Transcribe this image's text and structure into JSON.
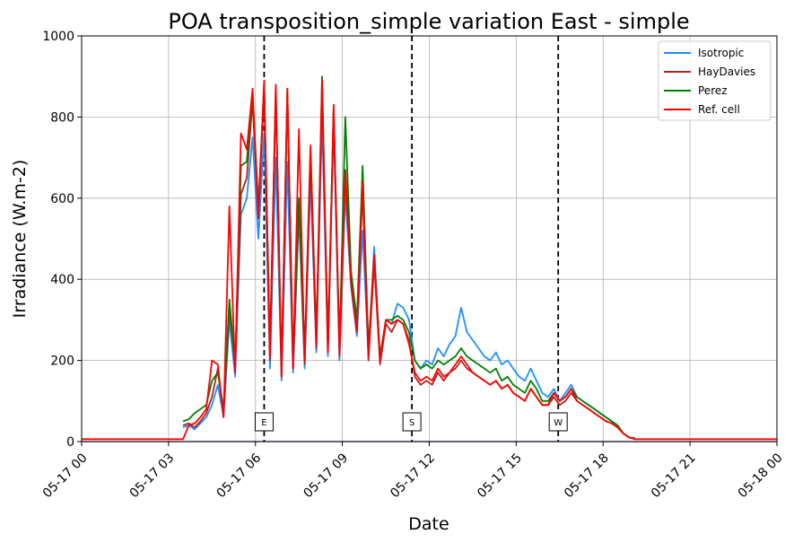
{
  "chart_data": {
    "type": "line",
    "title": "POA transposition_simple variation East - simple",
    "xlabel": "Date",
    "ylabel": "Irradiance (W.m-2)",
    "xlim": [
      0,
      24
    ],
    "ylim": [
      0,
      1000
    ],
    "grid": true,
    "legend_position": "top-right",
    "x_ticks": [
      {
        "value": 0,
        "label": "05-17 00"
      },
      {
        "value": 3,
        "label": "05-17 03"
      },
      {
        "value": 6,
        "label": "05-17 06"
      },
      {
        "value": 9,
        "label": "05-17 09"
      },
      {
        "value": 12,
        "label": "05-17 12"
      },
      {
        "value": 15,
        "label": "05-17 15"
      },
      {
        "value": 18,
        "label": "05-17 18"
      },
      {
        "value": 21,
        "label": "05-17 21"
      },
      {
        "value": 24,
        "label": "05-18 00"
      }
    ],
    "y_ticks": [
      0,
      200,
      400,
      600,
      800,
      1000
    ],
    "markers": [
      {
        "label": "E",
        "x": 6.3
      },
      {
        "label": "S",
        "x": 11.4
      },
      {
        "label": "W",
        "x": 16.45
      }
    ],
    "series": [
      {
        "name": "Isotropic",
        "color": "#1e90ff",
        "x": [
          3.5,
          3.7,
          3.9,
          4.1,
          4.3,
          4.5,
          4.7,
          4.9,
          5.1,
          5.3,
          5.5,
          5.7,
          5.9,
          6.1,
          6.3,
          6.5,
          6.7,
          6.9,
          7.1,
          7.3,
          7.5,
          7.7,
          7.9,
          8.1,
          8.3,
          8.5,
          8.7,
          8.9,
          9.1,
          9.3,
          9.5,
          9.7,
          9.9,
          10.1,
          10.3,
          10.5,
          10.7,
          10.9,
          11.1,
          11.3,
          11.5,
          11.7,
          11.9,
          12.1,
          12.3,
          12.5,
          12.7,
          12.9,
          13.1,
          13.3,
          13.5,
          13.7,
          13.9,
          14.1,
          14.3,
          14.5,
          14.7,
          14.9,
          15.1,
          15.3,
          15.5,
          15.7,
          15.9,
          16.1,
          16.3,
          16.5,
          16.7,
          16.9,
          17.1,
          17.3,
          17.5,
          17.7,
          17.9,
          18.1,
          18.3,
          18.5,
          18.7,
          18.9,
          19.1
        ],
        "values": [
          35,
          40,
          30,
          45,
          60,
          90,
          140,
          60,
          300,
          160,
          560,
          600,
          750,
          500,
          760,
          180,
          700,
          150,
          690,
          170,
          560,
          180,
          650,
          220,
          800,
          210,
          780,
          200,
          610,
          380,
          260,
          520,
          210,
          480,
          200,
          300,
          290,
          340,
          330,
          300,
          200,
          180,
          200,
          190,
          230,
          210,
          240,
          260,
          330,
          270,
          250,
          230,
          210,
          200,
          220,
          190,
          200,
          180,
          160,
          150,
          180,
          150,
          120,
          110,
          130,
          100,
          120,
          140,
          110,
          100,
          90,
          80,
          70,
          60,
          50,
          40,
          20,
          10,
          8
        ]
      },
      {
        "name": "HayDavies",
        "color": "#b22222",
        "x": [
          3.5,
          3.7,
          3.9,
          4.1,
          4.3,
          4.5,
          4.7,
          4.9,
          5.1,
          5.3,
          5.5,
          5.7,
          5.9,
          6.1,
          6.3,
          6.5,
          6.7,
          6.9,
          7.1,
          7.3,
          7.5,
          7.7,
          7.9,
          8.1,
          8.3,
          8.5,
          8.7,
          8.9,
          9.1,
          9.3,
          9.5,
          9.7,
          9.9,
          10.1,
          10.3,
          10.5,
          10.7,
          10.9,
          11.1,
          11.3,
          11.5,
          11.7,
          11.9,
          12.1,
          12.3,
          12.5,
          12.7,
          12.9,
          13.1,
          13.3,
          13.5,
          13.7,
          13.9,
          14.1,
          14.3,
          14.5,
          14.7,
          14.9,
          15.1,
          15.3,
          15.5,
          15.7,
          15.9,
          16.1,
          16.3,
          16.5,
          16.7,
          16.9,
          17.1,
          17.3,
          17.5,
          17.7,
          17.9,
          18.1,
          18.3,
          18.5,
          18.7,
          18.9,
          19.1
        ],
        "values": [
          40,
          45,
          35,
          50,
          70,
          110,
          180,
          70,
          330,
          180,
          610,
          650,
          840,
          550,
          870,
          200,
          860,
          160,
          860,
          180,
          590,
          190,
          700,
          230,
          870,
          220,
          820,
          210,
          670,
          410,
          280,
          620,
          200,
          440,
          190,
          290,
          270,
          300,
          290,
          250,
          160,
          140,
          150,
          140,
          170,
          150,
          170,
          180,
          200,
          180,
          170,
          160,
          150,
          140,
          150,
          130,
          140,
          120,
          110,
          100,
          130,
          110,
          90,
          90,
          110,
          90,
          100,
          120,
          100,
          90,
          80,
          70,
          60,
          50,
          45,
          35,
          20,
          10,
          8
        ]
      },
      {
        "name": "Perez",
        "color": "#008000",
        "x": [
          3.5,
          3.7,
          3.9,
          4.1,
          4.3,
          4.5,
          4.7,
          4.9,
          5.1,
          5.3,
          5.5,
          5.7,
          5.9,
          6.1,
          6.3,
          6.5,
          6.7,
          6.9,
          7.1,
          7.3,
          7.5,
          7.7,
          7.9,
          8.1,
          8.3,
          8.5,
          8.7,
          8.9,
          9.1,
          9.3,
          9.5,
          9.7,
          9.9,
          10.1,
          10.3,
          10.5,
          10.7,
          10.9,
          11.1,
          11.3,
          11.5,
          11.7,
          11.9,
          12.1,
          12.3,
          12.5,
          12.7,
          12.9,
          13.1,
          13.3,
          13.5,
          13.7,
          13.9,
          14.1,
          14.3,
          14.5,
          14.7,
          14.9,
          15.1,
          15.3,
          15.5,
          15.7,
          15.9,
          16.1,
          16.3,
          16.5,
          16.7,
          16.9,
          17.1,
          17.3,
          17.5,
          17.7,
          17.9,
          18.1,
          18.3,
          18.5,
          18.7,
          18.9,
          19.1
        ],
        "values": [
          50,
          55,
          70,
          80,
          90,
          150,
          170,
          80,
          350,
          190,
          680,
          690,
          860,
          580,
          880,
          230,
          870,
          180,
          870,
          200,
          600,
          210,
          720,
          260,
          900,
          240,
          820,
          230,
          800,
          420,
          300,
          680,
          230,
          460,
          210,
          300,
          300,
          310,
          300,
          270,
          200,
          180,
          190,
          180,
          200,
          190,
          200,
          210,
          230,
          210,
          200,
          190,
          180,
          170,
          180,
          150,
          160,
          140,
          130,
          120,
          150,
          130,
          100,
          100,
          120,
          100,
          110,
          130,
          110,
          100,
          90,
          80,
          70,
          60,
          50,
          40,
          20,
          10,
          8
        ]
      },
      {
        "name": "Ref. cell",
        "color": "#ff0000",
        "x": [
          0,
          3.5,
          3.7,
          3.9,
          4.1,
          4.3,
          4.5,
          4.7,
          4.9,
          5.1,
          5.3,
          5.5,
          5.7,
          5.9,
          6.1,
          6.3,
          6.5,
          6.7,
          6.9,
          7.1,
          7.3,
          7.5,
          7.7,
          7.9,
          8.1,
          8.3,
          8.5,
          8.7,
          8.9,
          9.1,
          9.3,
          9.5,
          9.7,
          9.9,
          10.1,
          10.3,
          10.5,
          10.7,
          10.9,
          11.1,
          11.3,
          11.5,
          11.7,
          11.9,
          12.1,
          12.3,
          12.5,
          12.7,
          12.9,
          13.1,
          13.3,
          13.5,
          13.7,
          13.9,
          14.1,
          14.3,
          14.5,
          14.7,
          14.9,
          15.1,
          15.3,
          15.5,
          15.7,
          15.9,
          16.1,
          16.3,
          16.5,
          16.7,
          16.9,
          17.1,
          17.3,
          17.5,
          17.7,
          17.9,
          18.1,
          18.3,
          18.5,
          18.7,
          18.9,
          19.1,
          24
        ],
        "values": [
          6,
          6,
          40,
          45,
          60,
          80,
          200,
          190,
          60,
          580,
          170,
          760,
          720,
          870,
          560,
          890,
          210,
          880,
          160,
          870,
          180,
          770,
          200,
          730,
          240,
          890,
          220,
          830,
          220,
          660,
          390,
          270,
          640,
          210,
          460,
          200,
          300,
          290,
          300,
          290,
          240,
          170,
          150,
          160,
          150,
          180,
          160,
          170,
          190,
          210,
          190,
          170,
          160,
          150,
          140,
          150,
          130,
          140,
          120,
          110,
          100,
          130,
          110,
          90,
          90,
          120,
          100,
          110,
          130,
          100,
          90,
          80,
          70,
          60,
          50,
          45,
          35,
          20,
          10,
          6,
          6
        ]
      }
    ]
  }
}
